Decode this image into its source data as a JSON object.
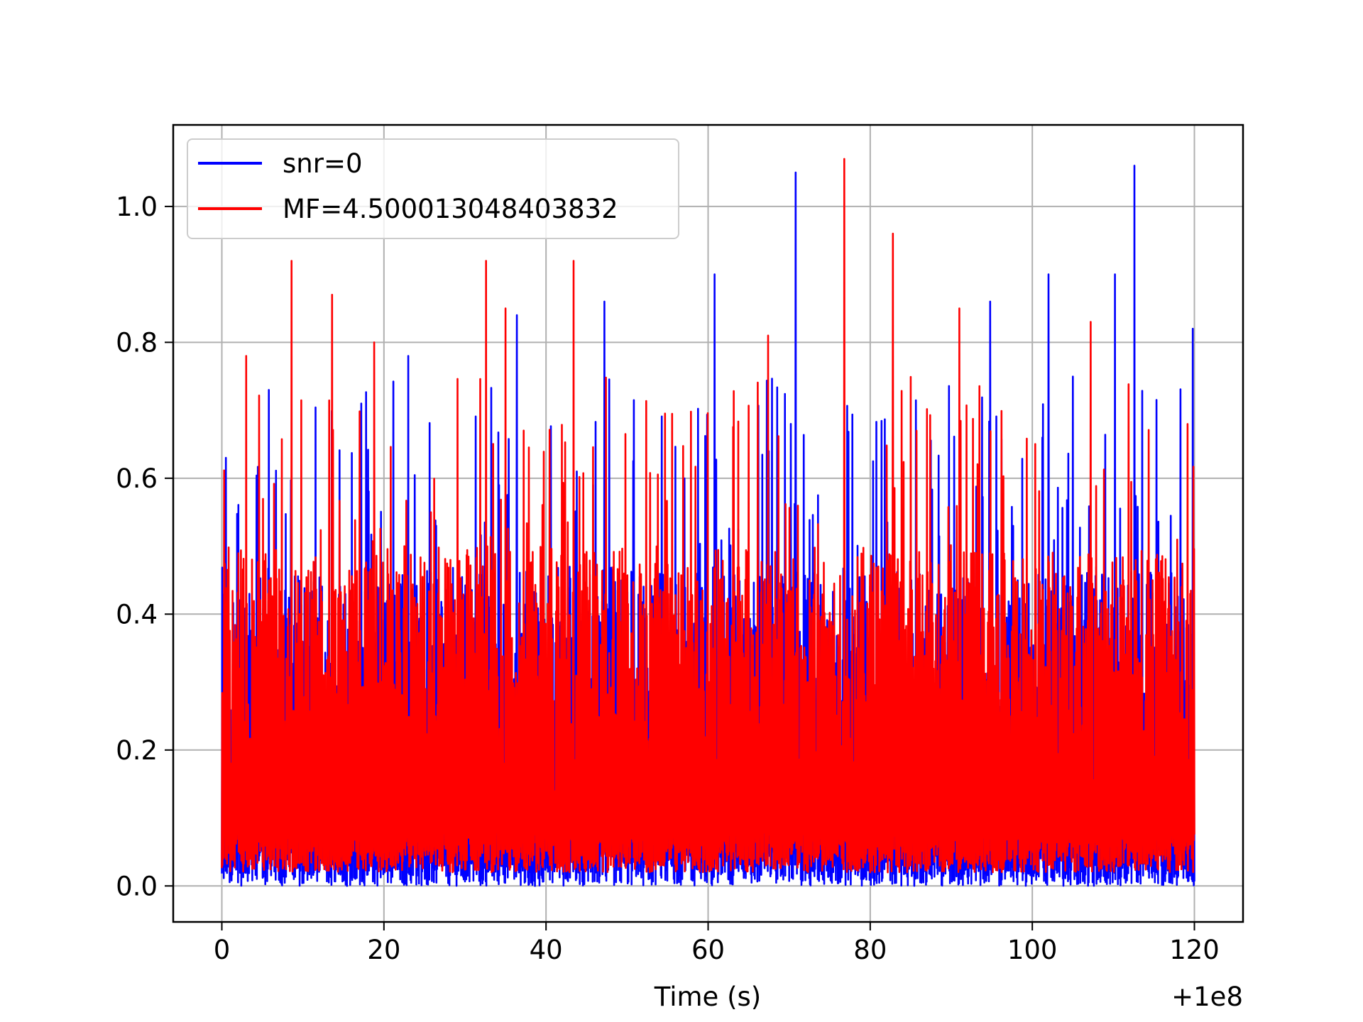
{
  "chart_data": {
    "type": "line",
    "title": "",
    "xlabel": "Time (s)",
    "ylabel": "",
    "x_offset_label": "+1e8",
    "xlim": [
      -6,
      126
    ],
    "ylim": [
      -0.053,
      1.12
    ],
    "x_ticks": [
      0,
      20,
      40,
      60,
      80,
      100,
      120
    ],
    "x_tick_labels": [
      "0",
      "20",
      "40",
      "60",
      "80",
      "100",
      "120"
    ],
    "y_ticks": [
      0.0,
      0.2,
      0.4,
      0.6,
      0.8,
      1.0
    ],
    "y_tick_labels": [
      "0.0",
      "0.2",
      "0.4",
      "0.6",
      "0.8",
      "1.0"
    ],
    "grid": true,
    "legend_position": "upper left",
    "x_range": [
      0,
      120
    ],
    "series": [
      {
        "name": "snr=0",
        "color": "#0000ff",
        "band_low": 0.0,
        "band_high": 0.47,
        "peaks": [
          {
            "x": 0.5,
            "y": 0.63
          },
          {
            "x": 5.8,
            "y": 0.73
          },
          {
            "x": 17.2,
            "y": 0.71
          },
          {
            "x": 23.0,
            "y": 0.78
          },
          {
            "x": 36.4,
            "y": 0.84
          },
          {
            "x": 47.2,
            "y": 0.86
          },
          {
            "x": 60.8,
            "y": 0.9
          },
          {
            "x": 70.8,
            "y": 1.05
          },
          {
            "x": 94.8,
            "y": 0.86
          },
          {
            "x": 102.0,
            "y": 0.9
          },
          {
            "x": 110.2,
            "y": 0.9
          },
          {
            "x": 112.6,
            "y": 1.06
          },
          {
            "x": 119.8,
            "y": 0.82
          }
        ]
      },
      {
        "name": "MF=4.500013048403832",
        "color": "#ff0000",
        "band_low": 0.02,
        "band_high": 0.5,
        "peaks": [
          {
            "x": 8.6,
            "y": 0.92
          },
          {
            "x": 13.6,
            "y": 0.87
          },
          {
            "x": 18.8,
            "y": 0.8
          },
          {
            "x": 32.6,
            "y": 0.92
          },
          {
            "x": 35.0,
            "y": 0.85
          },
          {
            "x": 43.4,
            "y": 0.92
          },
          {
            "x": 76.8,
            "y": 1.07
          },
          {
            "x": 82.8,
            "y": 0.96
          },
          {
            "x": 67.4,
            "y": 0.81
          },
          {
            "x": 91.0,
            "y": 0.85
          },
          {
            "x": 107.2,
            "y": 0.83
          },
          {
            "x": 3.0,
            "y": 0.78
          }
        ]
      }
    ]
  }
}
